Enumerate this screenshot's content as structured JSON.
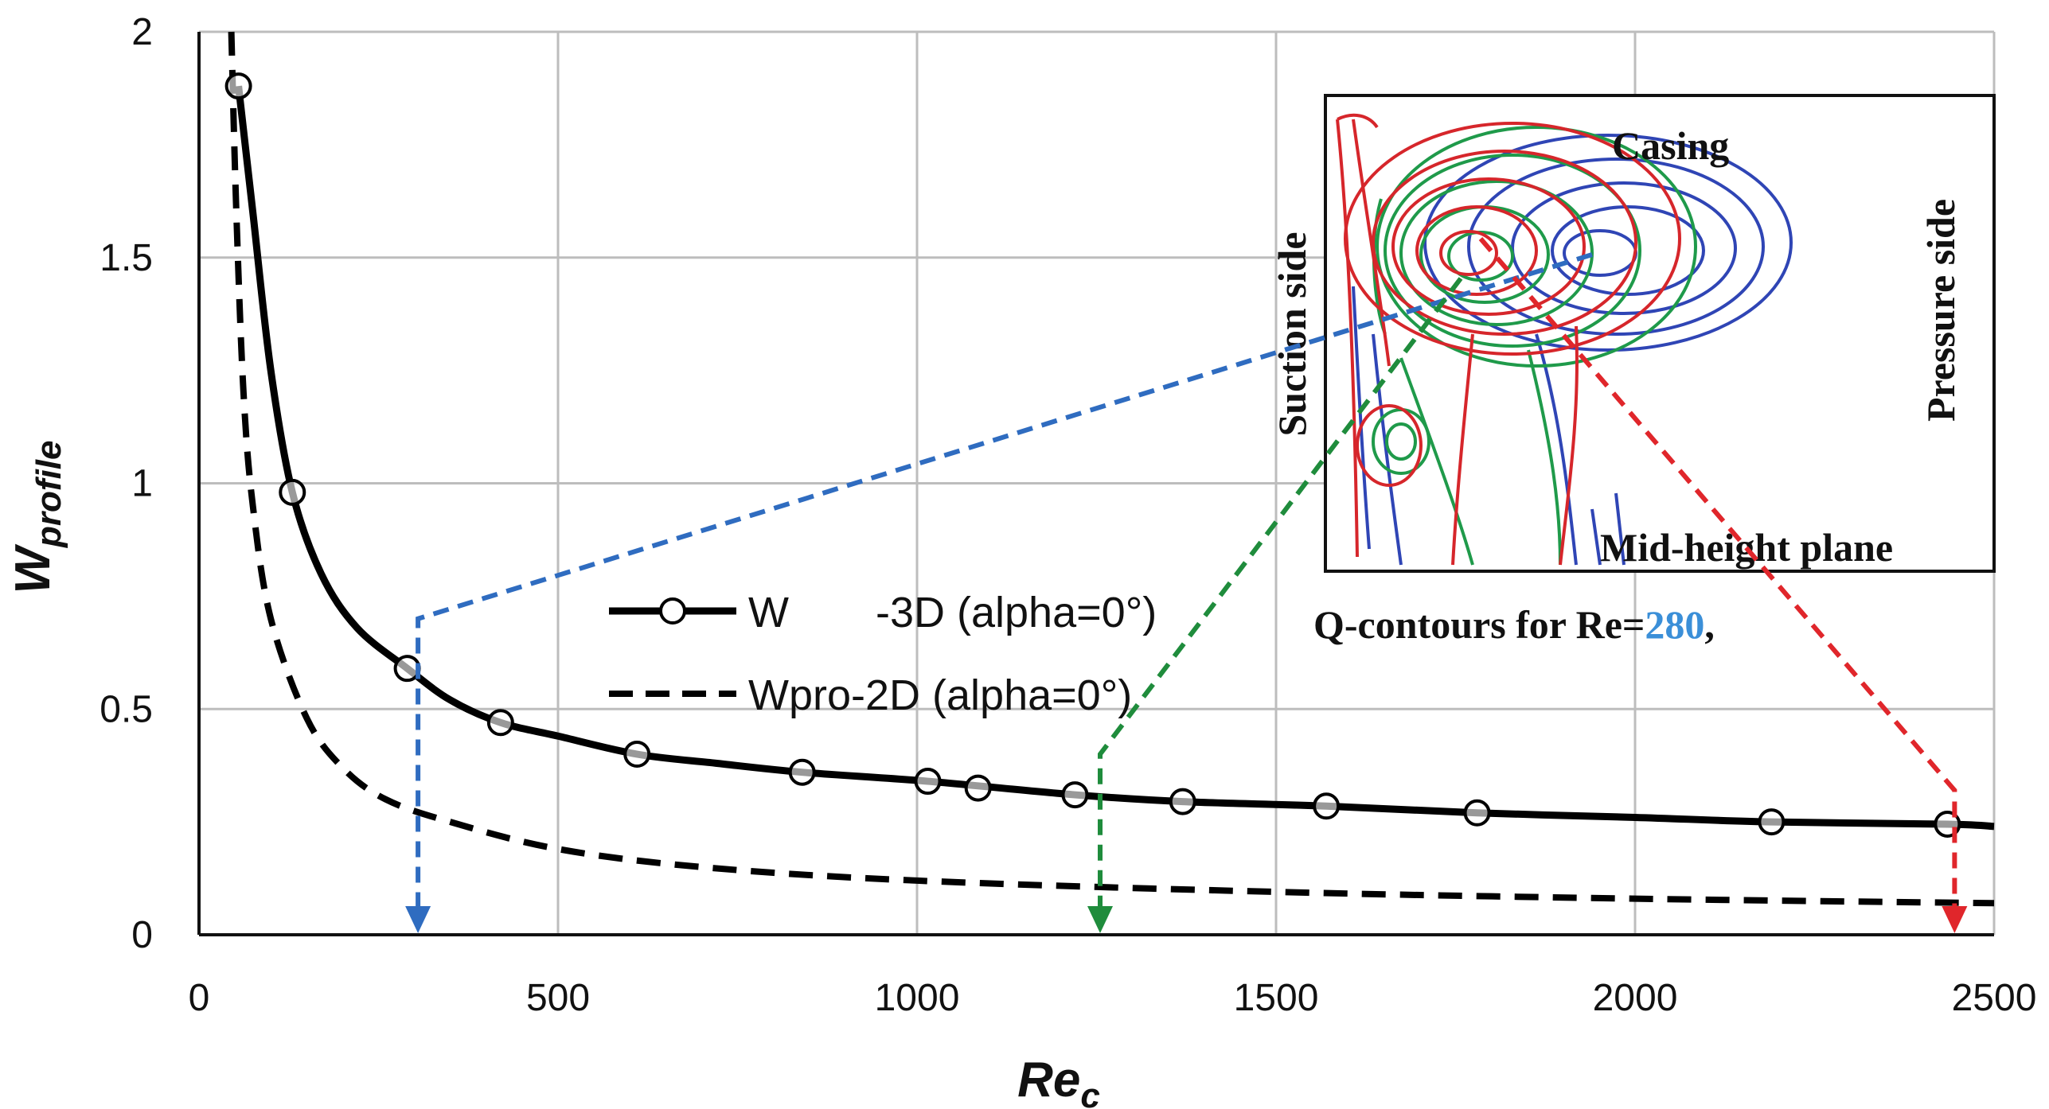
{
  "colors": {
    "axis": "#111111",
    "grid": "#bdbdbd",
    "series_3d": "#000000",
    "series_2d": "#000000",
    "blue": "#2f6cc0",
    "green": "#1f8c3c",
    "red": "#e0262b",
    "highlight_re": "#3b8fd8"
  },
  "chart_data": {
    "type": "line",
    "title": "",
    "xlabel": "Re",
    "xlabel_sub": "c",
    "ylabel": "W",
    "ylabel_sub": "profile",
    "xlim": [
      0,
      2500
    ],
    "ylim": [
      0,
      2
    ],
    "xticks": [
      "0",
      "500",
      "1000",
      "1500",
      "2000",
      "2500"
    ],
    "yticks": [
      "0",
      "0.5",
      "1",
      "1.5",
      "2"
    ],
    "grid": true,
    "legend_position": "center",
    "series": [
      {
        "name": "W",
        "legend_name_mid": "-3D (alpha=0°)",
        "style": "solid-with-circle-markers",
        "markers": [
          [
            55,
            1.88
          ],
          [
            130,
            0.98
          ],
          [
            290,
            0.59
          ],
          [
            420,
            0.47
          ],
          [
            610,
            0.4
          ],
          [
            840,
            0.36
          ],
          [
            1015,
            0.34
          ],
          [
            1085,
            0.325
          ],
          [
            1220,
            0.31
          ],
          [
            1370,
            0.295
          ],
          [
            1570,
            0.285
          ],
          [
            1780,
            0.27
          ],
          [
            2190,
            0.25
          ],
          [
            2435,
            0.245
          ]
        ],
        "curve": [
          [
            55,
            1.88
          ],
          [
            75,
            1.6
          ],
          [
            100,
            1.25
          ],
          [
            130,
            0.98
          ],
          [
            170,
            0.8
          ],
          [
            220,
            0.68
          ],
          [
            290,
            0.59
          ],
          [
            350,
            0.52
          ],
          [
            420,
            0.47
          ],
          [
            500,
            0.44
          ],
          [
            610,
            0.4
          ],
          [
            720,
            0.38
          ],
          [
            840,
            0.36
          ],
          [
            1015,
            0.34
          ],
          [
            1220,
            0.31
          ],
          [
            1370,
            0.295
          ],
          [
            1570,
            0.285
          ],
          [
            1780,
            0.27
          ],
          [
            2000,
            0.26
          ],
          [
            2190,
            0.25
          ],
          [
            2435,
            0.245
          ],
          [
            2500,
            0.24
          ]
        ]
      },
      {
        "name": "Wpro-2D (alpha=0°)",
        "style": "dashed",
        "curve": [
          [
            45,
            2.0
          ],
          [
            52,
            1.6
          ],
          [
            62,
            1.2
          ],
          [
            75,
            0.95
          ],
          [
            100,
            0.7
          ],
          [
            150,
            0.48
          ],
          [
            200,
            0.37
          ],
          [
            260,
            0.3
          ],
          [
            350,
            0.25
          ],
          [
            500,
            0.19
          ],
          [
            700,
            0.15
          ],
          [
            1000,
            0.12
          ],
          [
            1500,
            0.095
          ],
          [
            2000,
            0.08
          ],
          [
            2500,
            0.07
          ]
        ]
      }
    ],
    "annotations": {
      "arrow_targets": [
        {
          "color": "blue",
          "x": 305,
          "bend_y": 0.7
        },
        {
          "color": "green",
          "x": 1255,
          "bend_y": 0.4
        },
        {
          "color": "red",
          "x": 2445,
          "bend_y": 0.32
        }
      ]
    }
  },
  "inset": {
    "labels": {
      "casing": "Casing",
      "suction": "Suction side",
      "pressure": "Pressure side",
      "midheight": "Mid-height plane"
    },
    "caption_prefix": "Q-contours for Re=",
    "caption_value": "280",
    "caption_suffix": ","
  }
}
